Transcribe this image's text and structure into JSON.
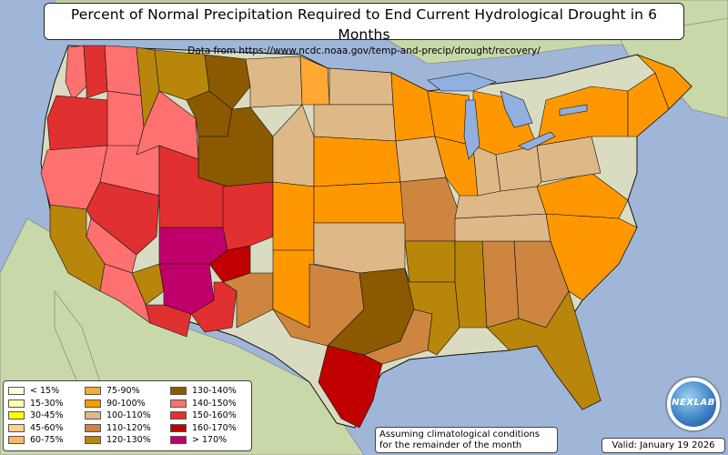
{
  "map": {
    "title": "Percent of Normal Precipitation Required to End Current Hydrological Drought in 6 Months",
    "subtitle": "Data from https://www.ncdc.noaa.gov/temp-and-precip/drought/recovery/",
    "note_line1": "Assuming climatological conditions",
    "note_line2": "for the remainder of the month",
    "valid_text": "Valid: January 19 2026",
    "logo_text": "NEXLAB",
    "colors": {
      "ocean": "#9fb6d9",
      "land_outside": "#c8d8a8",
      "terrain": "#d9dcc0",
      "lake": "#8fb0e0",
      "boundary": "#111111"
    }
  },
  "legend": {
    "items": [
      {
        "label": "< 15%",
        "color": "#ffffe0"
      },
      {
        "label": "15-30%",
        "color": "#ffffb0"
      },
      {
        "label": "30-45%",
        "color": "#ffff00"
      },
      {
        "label": "45-60%",
        "color": "#ffd090"
      },
      {
        "label": "60-75%",
        "color": "#ffb860"
      },
      {
        "label": "75-90%",
        "color": "#ffa833"
      },
      {
        "label": "90-100%",
        "color": "#ff9800"
      },
      {
        "label": "100-110%",
        "color": "#deb887"
      },
      {
        "label": "110-120%",
        "color": "#cd853f"
      },
      {
        "label": "120-130%",
        "color": "#b8860b"
      },
      {
        "label": "130-140%",
        "color": "#8b5a00"
      },
      {
        "label": "140-150%",
        "color": "#ff7070"
      },
      {
        "label": "150-160%",
        "color": "#e03030"
      },
      {
        "label": "160-170%",
        "color": "#c00000"
      },
      {
        "label": "> 170%",
        "color": "#c0006a"
      }
    ]
  },
  "regions": [
    {
      "name": "Washington coast",
      "category": "140-150%"
    },
    {
      "name": "Western Washington",
      "category": "150-160%"
    },
    {
      "name": "Eastern Washington",
      "category": "140-150%"
    },
    {
      "name": "Western Oregon",
      "category": "150-160%"
    },
    {
      "name": "Eastern Oregon",
      "category": "140-150%"
    },
    {
      "name": "Northern California",
      "category": "140-150%"
    },
    {
      "name": "Northern Nevada",
      "category": "140-150%"
    },
    {
      "name": "Central Nevada",
      "category": "150-160%"
    },
    {
      "name": "Southern Nevada",
      "category": "140-150%"
    },
    {
      "name": "Northern Idaho",
      "category": "120-130%"
    },
    {
      "name": "Southern Idaho",
      "category": "140-150%"
    },
    {
      "name": "Western Montana",
      "category": "120-130%"
    },
    {
      "name": "Montana mountains",
      "category": "130-140%"
    },
    {
      "name": "Southwest Montana",
      "category": "130-140%"
    },
    {
      "name": "Central Montana",
      "category": "100-110%"
    },
    {
      "name": "Eastern Montana",
      "category": "75-90%"
    },
    {
      "name": "Western Wyoming",
      "category": "130-140%"
    },
    {
      "name": "Eastern Wyoming",
      "category": "100-110%"
    },
    {
      "name": "Northern Utah",
      "category": "150-160%"
    },
    {
      "name": "Southern Utah",
      "category": "> 170%"
    },
    {
      "name": "Western Colorado",
      "category": "150-160%"
    },
    {
      "name": "Eastern Colorado",
      "category": "90-100%"
    },
    {
      "name": "Arizona northwest",
      "category": "120-130%"
    },
    {
      "name": "Arizona",
      "category": "> 170%"
    },
    {
      "name": "Southern Arizona",
      "category": "150-160%"
    },
    {
      "name": "Northern New Mexico",
      "category": "160-170%"
    },
    {
      "name": "Western New Mexico",
      "category": "150-160%"
    },
    {
      "name": "Central New Mexico",
      "category": "110-120%"
    },
    {
      "name": "Eastern New Mexico",
      "category": "90-100%"
    },
    {
      "name": "Central California coast",
      "category": "120-130%"
    },
    {
      "name": "Southern California",
      "category": "140-150%"
    },
    {
      "name": "North Dakota",
      "category": "100-110%"
    },
    {
      "name": "South Dakota",
      "category": "100-110%"
    },
    {
      "name": "Nebraska",
      "category": "90-100%"
    },
    {
      "name": "Kansas",
      "category": "90-100%"
    },
    {
      "name": "Minnesota",
      "category": "90-100%"
    },
    {
      "name": "Iowa",
      "category": "100-110%"
    },
    {
      "name": "Missouri",
      "category": "110-120%"
    },
    {
      "name": "Oklahoma",
      "category": "100-110%"
    },
    {
      "name": "West Texas",
      "category": "110-120%"
    },
    {
      "name": "Central Texas",
      "category": "130-140%"
    },
    {
      "name": "South Texas",
      "category": "160-170%"
    },
    {
      "name": "East Texas",
      "category": "110-120%"
    },
    {
      "name": "Arkansas",
      "category": "120-130%"
    },
    {
      "name": "Louisiana",
      "category": "120-130%"
    },
    {
      "name": "Mississippi",
      "category": "120-130%"
    },
    {
      "name": "Alabama",
      "category": "110-120%"
    },
    {
      "name": "Georgia",
      "category": "110-120%"
    },
    {
      "name": "Florida",
      "category": "120-130%"
    },
    {
      "name": "Tennessee",
      "category": "100-110%"
    },
    {
      "name": "Kentucky",
      "category": "100-110%"
    },
    {
      "name": "Wisconsin",
      "category": "90-100%"
    },
    {
      "name": "Michigan",
      "category": "90-100%"
    },
    {
      "name": "Illinois",
      "category": "90-100%"
    },
    {
      "name": "Indiana",
      "category": "100-110%"
    },
    {
      "name": "Ohio",
      "category": "100-110%"
    },
    {
      "name": "Virginia",
      "category": "90-100%"
    },
    {
      "name": "Carolinas",
      "category": "90-100%"
    },
    {
      "name": "Pennsylvania",
      "category": "100-110%"
    },
    {
      "name": "New York",
      "category": "90-100%"
    },
    {
      "name": "New England",
      "category": "90-100%"
    },
    {
      "name": "Maine",
      "category": "90-100%"
    }
  ]
}
